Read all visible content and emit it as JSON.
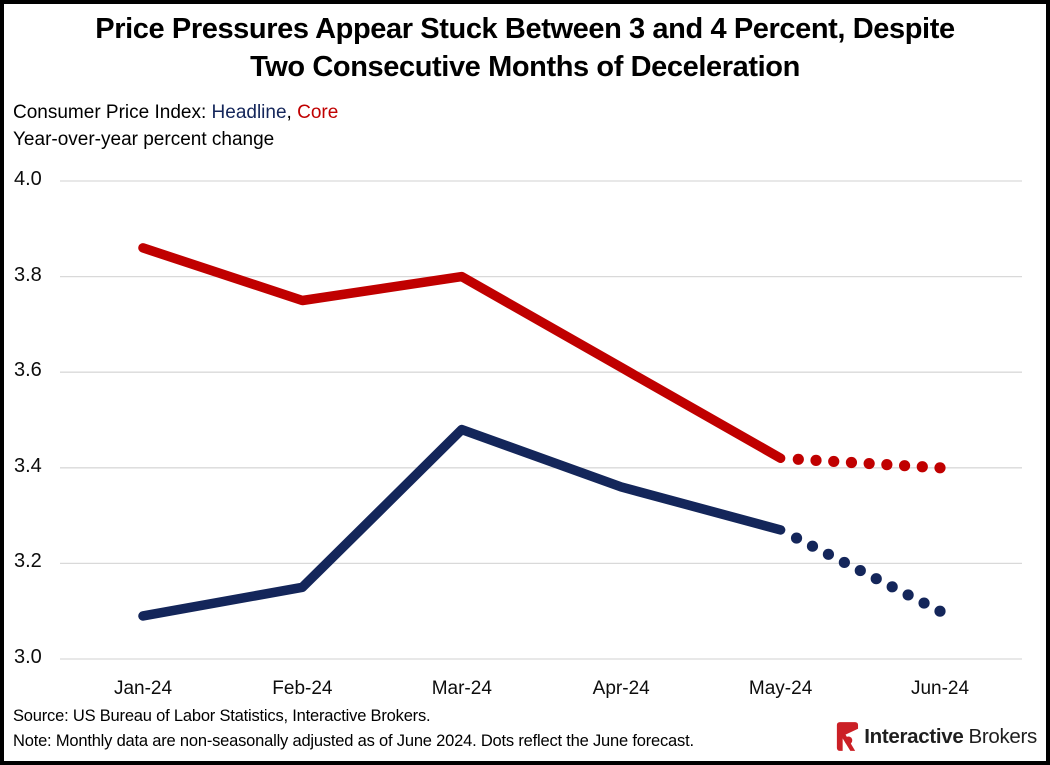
{
  "header": {
    "title_line1": "Price Pressures Appear Stuck Between 3 and 4 Percent, Despite",
    "title_line2": "Two Consecutive Months of Deceleration",
    "legend_prefix": "Consumer Price Index: ",
    "legend_headline": "Headline",
    "legend_separator": ", ",
    "legend_core": "Core",
    "units_line": "Year-over-year percent change"
  },
  "colors": {
    "gridline": "#D9D9D9",
    "axis_text": "#0d0d0d",
    "title_text": "#000000",
    "logo_red": "#CB2026",
    "logo_text": "#1F1F1F"
  },
  "chart_data": {
    "type": "line",
    "title": "Price Pressures Appear Stuck Between 3 and 4 Percent, Despite Two Consecutive Months of Deceleration",
    "subtitle": "Consumer Price Index: Headline, Core",
    "ylabel": "Year-over-year percent change",
    "categories": [
      "Jan-24",
      "Feb-24",
      "Mar-24",
      "Apr-24",
      "May-24",
      "Jun-24"
    ],
    "series": [
      {
        "name": "Headline",
        "color": "#14265A",
        "values": [
          3.09,
          3.15,
          3.48,
          3.36,
          3.27,
          3.1
        ],
        "solid_through": "May-24",
        "forecast_style": "dots",
        "forecast_dot_count": 10,
        "forecast_note": "Jun-24 value is a forecast shown as dots"
      },
      {
        "name": "Core",
        "color": "#C00000",
        "values": [
          3.86,
          3.75,
          3.8,
          3.61,
          3.42,
          3.4
        ],
        "solid_through": "May-24",
        "forecast_style": "dots",
        "forecast_dot_count": 9,
        "forecast_note": "Jun-24 value is a forecast shown as dots"
      }
    ],
    "ylim": [
      3.0,
      4.0
    ],
    "yticks": [
      "4.0",
      "3.8",
      "3.6",
      "3.4",
      "3.2",
      "3.0"
    ],
    "grid": true,
    "legend_position": "in-subtitle"
  },
  "footer": {
    "source": "Source: US Bureau of Labor Statistics, Interactive Brokers.",
    "note": "Note: Monthly data are non-seasonally adjusted as of June 2024. Dots reflect the June forecast.",
    "logo_bold": "Interactive",
    "logo_regular": "Brokers"
  }
}
